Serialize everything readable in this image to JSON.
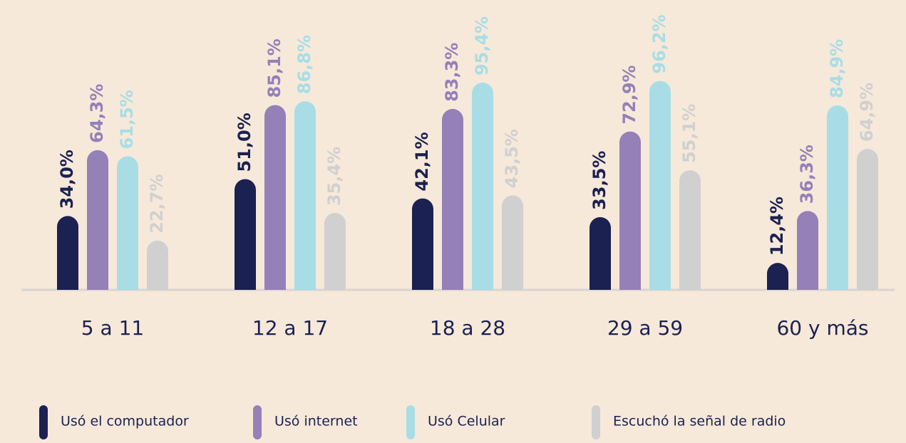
{
  "chart_data": {
    "type": "bar",
    "categories": [
      "5 a 11",
      "12 a 17",
      "18 a 28",
      "29 a 59",
      "60 y más"
    ],
    "ylim": [
      0,
      100
    ],
    "series": [
      {
        "name": "Usó el computador",
        "color": "#1b2150",
        "values": [
          34.0,
          51.0,
          42.1,
          33.5,
          12.4
        ],
        "value_labels": [
          "34,0%",
          "51,0%",
          "42,1%",
          "33,5%",
          "12,4%"
        ]
      },
      {
        "name": "Usó internet",
        "color": "#9580b8",
        "values": [
          64.3,
          85.1,
          83.3,
          72.9,
          36.3
        ],
        "value_labels": [
          "64,3%",
          "85,1%",
          "83,3%",
          "72,9%",
          "36,3%"
        ]
      },
      {
        "name": "Usó Celular",
        "color": "#a8dde6",
        "values": [
          61.5,
          86.8,
          95.4,
          96.2,
          84.9
        ],
        "value_labels": [
          "61,5%",
          "86,8%",
          "95,4%",
          "96,2%",
          "84,9%"
        ]
      },
      {
        "name": "Escuchó la señal de radio",
        "color": "#d0d0d0",
        "values": [
          22.7,
          35.4,
          43.5,
          55.1,
          64.9
        ],
        "value_labels": [
          "22,7%",
          "35,4%",
          "43,5%",
          "55,1%",
          "64,9%"
        ]
      }
    ]
  }
}
